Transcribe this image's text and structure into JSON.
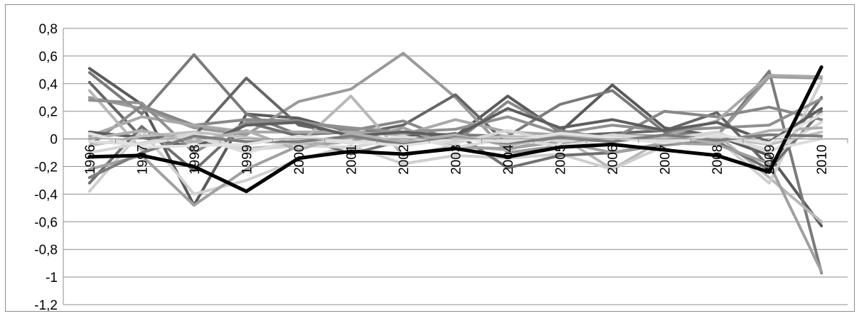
{
  "chart_data": {
    "type": "line",
    "title": "",
    "xlabel": "",
    "ylabel": "",
    "categories": [
      "1996",
      "1997",
      "1998",
      "1999",
      "2000",
      "2001",
      "2002",
      "2003",
      "2004",
      "2005",
      "2006",
      "2007",
      "2008",
      "2009",
      "2010"
    ],
    "ylim": [
      -1.2,
      0.8
    ],
    "yticks": [
      0.8,
      0.6,
      0.4,
      0.2,
      0,
      -0.2,
      -0.4,
      -0.6,
      -0.8,
      -1,
      -1.2
    ],
    "ytick_labels": [
      "0,8",
      "0,6",
      "0,4",
      "0,2",
      "0",
      "-0,2",
      "-0,4",
      "-0,6",
      "-0,8",
      "-1",
      "-1,2"
    ],
    "grid": true,
    "legend": "none",
    "highlight_color": "#000000",
    "series": [
      {
        "color": "#5a5a5a",
        "values": [
          0.51,
          0.25,
          -0.48,
          0.18,
          0.15,
          0.05,
          0.03,
          0.02,
          0.31,
          0.05,
          0.39,
          0.08,
          0.02,
          -0.12,
          -0.63
        ]
      },
      {
        "color": "#7a7a7a",
        "values": [
          0.48,
          0.18,
          0.61,
          0.18,
          0.03,
          0.05,
          0.04,
          0.03,
          0.02,
          0.25,
          0.35,
          0.05,
          0.02,
          0.49,
          -0.97
        ]
      },
      {
        "color": "#9a9a9a",
        "values": [
          0.3,
          0.22,
          0.08,
          0.03,
          0.27,
          0.36,
          0.62,
          0.3,
          -0.1,
          -0.05,
          0.03,
          0.02,
          0.02,
          0.45,
          0.44
        ]
      },
      {
        "color": "#666666",
        "values": [
          0.41,
          0.01,
          0.02,
          0.44,
          0.1,
          0.03,
          0.1,
          0.32,
          -0.04,
          0.02,
          0.04,
          0.06,
          0.19,
          -0.2,
          0.3
        ]
      },
      {
        "color": "#888888",
        "values": [
          -0.05,
          0.24,
          0.1,
          0.14,
          0.13,
          0.06,
          0.13,
          -0.02,
          0.27,
          0.06,
          0.0,
          0.2,
          0.16,
          0.23,
          0.14
        ]
      },
      {
        "color": "#a8a8a8",
        "values": [
          0.02,
          0.16,
          0.1,
          0.05,
          0.05,
          0.05,
          0.03,
          0.14,
          0.05,
          0.03,
          0.0,
          0.02,
          0.13,
          0.46,
          0.45
        ]
      },
      {
        "color": "#b8b8b8",
        "values": [
          0.35,
          -0.08,
          -0.02,
          -0.07,
          -0.04,
          0.31,
          -0.12,
          -0.05,
          -0.08,
          0.02,
          -0.22,
          0.0,
          0.03,
          -0.28,
          -0.6
        ]
      },
      {
        "color": "#cfcfcf",
        "values": [
          -0.38,
          0.06,
          -0.4,
          -0.3,
          -0.15,
          -0.05,
          -0.18,
          -0.12,
          -0.14,
          -0.11,
          -0.22,
          -0.05,
          0.0,
          -0.32,
          0.42
        ]
      },
      {
        "color": "#707070",
        "values": [
          -0.32,
          0.09,
          -0.23,
          0.12,
          0.02,
          -0.11,
          -0.01,
          0.04,
          -0.21,
          -0.12,
          -0.1,
          -0.04,
          -0.02,
          -0.22,
          0.2
        ]
      },
      {
        "color": "#909090",
        "values": [
          0.28,
          0.26,
          -0.1,
          0.12,
          0.12,
          0.08,
          0.05,
          0.07,
          0.16,
          0.04,
          0.1,
          0.06,
          0.08,
          0.1,
          0.29
        ]
      },
      {
        "color": "#a0a0a0",
        "values": [
          -0.22,
          -0.12,
          -0.48,
          -0.22,
          -0.05,
          -0.02,
          0.08,
          -0.06,
          -0.07,
          -0.02,
          -0.1,
          -0.03,
          -0.04,
          -0.18,
          -0.96
        ]
      },
      {
        "color": "#5e5e5e",
        "values": [
          0.05,
          0.01,
          -0.06,
          0.1,
          0.12,
          0.02,
          0.05,
          0.02,
          0.22,
          0.08,
          0.14,
          0.06,
          0.12,
          -0.02,
          0.22
        ]
      },
      {
        "color": "#c0c0c0",
        "values": [
          -0.05,
          0.02,
          0.05,
          0.01,
          -0.03,
          0.01,
          0.0,
          -0.01,
          0.02,
          0.0,
          0.02,
          0.01,
          0.01,
          -0.04,
          0.05
        ]
      },
      {
        "color": "#d6d6d6",
        "values": [
          -0.1,
          -0.03,
          0.04,
          -0.08,
          -0.05,
          -0.06,
          0.0,
          -0.03,
          0.06,
          -0.02,
          0.03,
          0.0,
          0.05,
          -0.1,
          0.12
        ]
      },
      {
        "color": "#b0b0b0",
        "values": [
          0.0,
          0.06,
          -0.02,
          0.06,
          -0.08,
          0.04,
          -0.02,
          0.03,
          -0.05,
          0.03,
          -0.01,
          0.02,
          -0.03,
          0.06,
          0.08
        ]
      },
      {
        "color": "#dcdcdc",
        "values": [
          -0.02,
          -0.04,
          0.02,
          -0.1,
          0.0,
          -0.03,
          0.02,
          -0.06,
          0.0,
          -0.05,
          0.0,
          -0.02,
          0.02,
          -0.08,
          0.0
        ]
      },
      {
        "color": "#7c7c7c",
        "values": [
          -0.28,
          -0.1,
          0.02,
          -0.02,
          -0.02,
          0.02,
          -0.04,
          0.01,
          -0.03,
          0.01,
          -0.02,
          0.03,
          -0.01,
          0.03,
          0.02
        ]
      },
      {
        "color": "#e2e2e2",
        "values": [
          0.04,
          -0.06,
          -0.05,
          -0.04,
          0.02,
          -0.02,
          -0.05,
          0.0,
          -0.02,
          0.04,
          0.01,
          -0.03,
          0.03,
          -0.03,
          0.18
        ]
      },
      {
        "color": "#000000",
        "values": [
          -0.13,
          -0.12,
          -0.2,
          -0.38,
          -0.14,
          -0.09,
          -0.11,
          -0.07,
          -0.13,
          -0.06,
          -0.04,
          -0.08,
          -0.12,
          -0.24,
          0.52
        ]
      }
    ]
  }
}
